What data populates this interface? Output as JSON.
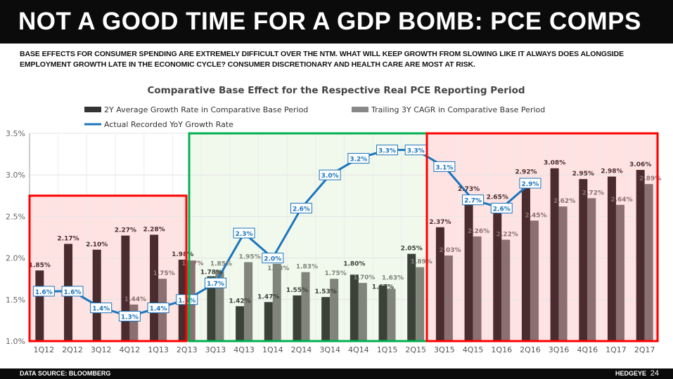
{
  "header": {
    "title": "NOT A GOOD TIME FOR A GDP BOMB: PCE COMPS"
  },
  "subtitle": "BASE EFFECTS FOR CONSUMER SPENDING ARE EXTREMELY DIFFICULT OVER THE NTM. WHAT WILL KEEP GROWTH FROM SLOWING LIKE IT ALWAYS DOES ALONGSIDE EMPLOYMENT GROWTH LATE IN THE ECONOMIC CYCLE? CONSUMER DISCRETIONARY AND HEALTH CARE ARE MOST AT RISK.",
  "footer": {
    "source": "DATA SOURCE: BLOOMBERG",
    "brand": "HEDGEYE",
    "page": "24"
  },
  "chart_data": {
    "type": "bar",
    "title": "Comparative Base Effect for the Respective Real PCE Reporting Period",
    "categories": [
      "1Q12",
      "2Q12",
      "3Q12",
      "4Q12",
      "1Q13",
      "2Q13",
      "3Q13",
      "4Q13",
      "1Q14",
      "2Q14",
      "3Q14",
      "4Q14",
      "1Q15",
      "2Q15",
      "3Q15",
      "4Q15",
      "1Q16",
      "2Q16",
      "3Q16",
      "4Q16",
      "1Q17",
      "2Q17"
    ],
    "ylim": [
      1.0,
      3.5
    ],
    "yticks": [
      "1.0%",
      "1.5%",
      "2.0%",
      "2.5%",
      "3.0%",
      "3.5%"
    ],
    "grid": true,
    "legend_position": "top",
    "series": [
      {
        "name": "2Y Average Growth Rate in Comparative Base Period",
        "kind": "bar",
        "values": [
          1.85,
          2.17,
          2.1,
          2.27,
          2.28,
          1.98,
          1.78,
          1.42,
          1.47,
          1.55,
          1.53,
          1.8,
          1.67,
          2.05,
          2.37,
          2.73,
          2.65,
          2.92,
          3.08,
          2.95,
          2.98,
          3.06
        ]
      },
      {
        "name": "Trailing 3Y CAGR in Comparative Base Period",
        "kind": "bar",
        "values": [
          null,
          null,
          null,
          1.44,
          1.75,
          1.97,
          1.85,
          1.95,
          1.93,
          1.83,
          1.75,
          1.7,
          1.63,
          1.89,
          2.03,
          2.26,
          2.22,
          2.45,
          2.62,
          2.72,
          2.64,
          2.89
        ]
      },
      {
        "name": "Actual Recorded YoY Growth Rate",
        "kind": "line",
        "color": "#1b75bc",
        "values": [
          1.6,
          1.6,
          1.4,
          1.3,
          1.4,
          1.5,
          1.7,
          2.3,
          2.0,
          2.6,
          3.0,
          3.2,
          3.3,
          3.3,
          3.1,
          2.7,
          2.6,
          2.9,
          null,
          null,
          null,
          null
        ]
      }
    ],
    "highlight_regions": [
      {
        "from": "1Q12",
        "to": "2Q13",
        "color": "#ff0000",
        "ymax": 2.75
      },
      {
        "from": "3Q13",
        "to": "2Q15",
        "color": "#00b050",
        "ymax": 3.5
      },
      {
        "from": "3Q15",
        "to": "2Q17",
        "color": "#ff0000",
        "ymax": 3.5
      }
    ],
    "colors": {
      "red_zone_dark": "#4a2c2f",
      "red_zone_light": "#8c6f70",
      "green_zone_dark": "#3c4138",
      "green_zone_light": "#80847a"
    }
  }
}
